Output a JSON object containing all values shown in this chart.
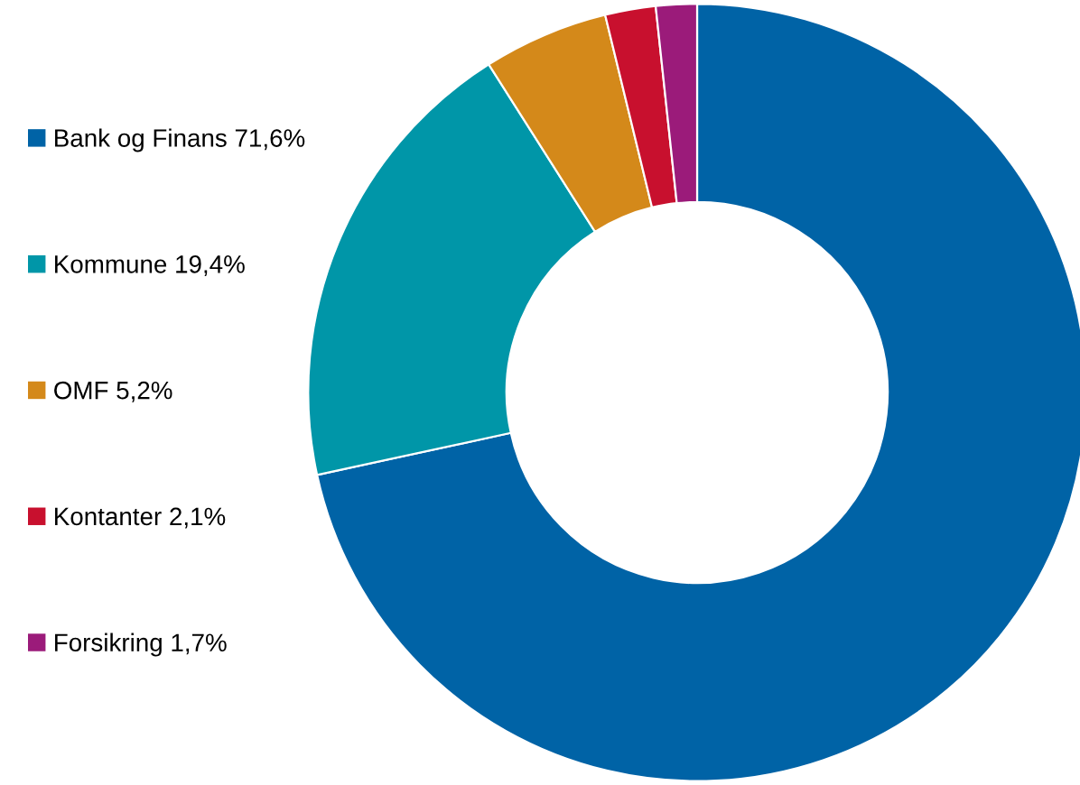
{
  "chart_data": {
    "type": "donut",
    "categories": [
      "Bank og Finans",
      "Kommune",
      "OMF",
      "Kontanter",
      "Forsikring"
    ],
    "values": [
      71.6,
      19.4,
      5.2,
      2.1,
      1.7
    ],
    "value_labels": [
      "71,6%",
      "19,4%",
      "5,2%",
      "2,1%",
      "1,7%"
    ],
    "colors": [
      "#0063a6",
      "#0096a8",
      "#d4891a",
      "#c8102e",
      "#9b1b7a"
    ],
    "legend": "left"
  }
}
